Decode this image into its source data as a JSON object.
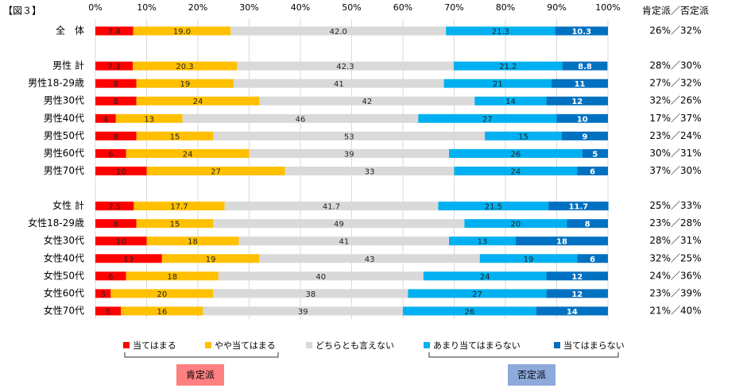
{
  "chart_data": {
    "type": "stacked-bar-horizontal",
    "figure_label": "【図３】",
    "categories": [
      "全　体",
      null,
      "男性 計",
      "男性18-29歳",
      "男性30代",
      "男性40代",
      "男性50代",
      "男性60代",
      "男性70代",
      null,
      "女性 計",
      "女性18-29歳",
      "女性30代",
      "女性40代",
      "女性50代",
      "女性60代",
      "女性70代"
    ],
    "series": [
      {
        "name": "当てはまる",
        "color": "#ff0000",
        "values": [
          7.4,
          null,
          7.3,
          8,
          8,
          4,
          8,
          6,
          10,
          null,
          7.5,
          8,
          10,
          13,
          6,
          3,
          5
        ],
        "value_labels": [
          "7.4",
          null,
          "7.3",
          "8",
          "8",
          "4",
          "8",
          "6",
          "10",
          null,
          "7.5",
          "8",
          "10",
          "13",
          "6",
          "3",
          "5"
        ]
      },
      {
        "name": "やや当てはまる",
        "color": "#ffc000",
        "values": [
          19.0,
          null,
          20.3,
          19,
          24,
          13,
          15,
          24,
          27,
          null,
          17.7,
          15,
          18,
          19,
          18,
          20,
          16
        ],
        "value_labels": [
          "19.0",
          null,
          "20.3",
          "19",
          "24",
          "13",
          "15",
          "24",
          "27",
          null,
          "17.7",
          "15",
          "18",
          "19",
          "18",
          "20",
          "16"
        ]
      },
      {
        "name": "どちらとも言えない",
        "color": "#d9d9d9",
        "values": [
          42.0,
          null,
          42.3,
          41,
          42,
          46,
          53,
          39,
          33,
          null,
          41.7,
          49,
          41,
          43,
          40,
          38,
          39
        ],
        "value_labels": [
          "42.0",
          null,
          "42.3",
          "41",
          "42",
          "46",
          "53",
          "39",
          "33",
          null,
          "41.7",
          "49",
          "41",
          "43",
          "40",
          "38",
          "39"
        ]
      },
      {
        "name": "あまり当てはまらない",
        "color": "#00b0f0",
        "values": [
          21.3,
          null,
          21.2,
          21,
          14,
          27,
          15,
          26,
          24,
          null,
          21.5,
          20,
          13,
          19,
          24,
          27,
          26
        ],
        "value_labels": [
          "21.3",
          null,
          "21.2",
          "21",
          "14",
          "27",
          "15",
          "26",
          "24",
          null,
          "21.5",
          "20",
          "13",
          "19",
          "24",
          "27",
          "26"
        ]
      },
      {
        "name": "当てはまらない",
        "color": "#0070c0",
        "values": [
          10.3,
          null,
          8.8,
          11,
          12,
          10,
          9,
          5,
          6,
          null,
          11.7,
          8,
          18,
          6,
          12,
          12,
          14
        ],
        "value_labels": [
          "10.3",
          null,
          "8.8",
          "11",
          "12",
          "10",
          "9",
          "5",
          "6",
          null,
          "11.7",
          "8",
          "18",
          "6",
          "12",
          "12",
          "14"
        ]
      }
    ],
    "xlim": [
      0,
      100
    ],
    "xticks": [
      {
        "value": 0,
        "label": "0%"
      },
      {
        "value": 10,
        "label": "10%"
      },
      {
        "value": 20,
        "label": "20%"
      },
      {
        "value": 30,
        "label": "30%"
      },
      {
        "value": 40,
        "label": "40%"
      },
      {
        "value": 50,
        "label": "50%"
      },
      {
        "value": 60,
        "label": "60%"
      },
      {
        "value": 70,
        "label": "70%"
      },
      {
        "value": 80,
        "label": "80%"
      },
      {
        "value": 90,
        "label": "90%"
      },
      {
        "value": 100,
        "label": "100%"
      }
    ],
    "grid": true,
    "right_header": "肯定派／否定派",
    "right_labels": [
      "26%／32%",
      null,
      "28%／30%",
      "27%／32%",
      "32%／26%",
      "17%／37%",
      "23%／24%",
      "30%／31%",
      "37%／30%",
      null,
      "25%／33%",
      "23%／28%",
      "28%／31%",
      "32%／25%",
      "24%／36%",
      "23%／39%",
      "21%／40%"
    ],
    "group_labels": [
      "肯定派",
      "否定派"
    ]
  }
}
